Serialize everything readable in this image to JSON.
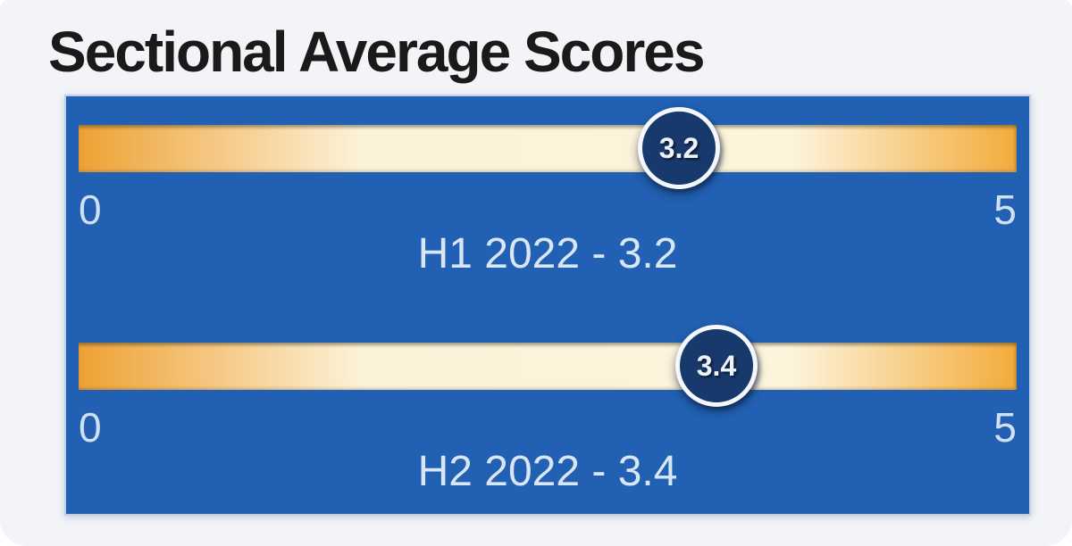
{
  "title": "Sectional Average Scores",
  "gauges": [
    {
      "id": "h1-2022",
      "period": "H1 2022",
      "value": 3.2,
      "min": 0,
      "max": 5,
      "tick_min": "0",
      "tick_max": "5",
      "marker_label": "3.2",
      "caption": "H1 2022 - 3.2"
    },
    {
      "id": "h2-2022",
      "period": "H2 2022",
      "value": 3.4,
      "min": 0,
      "max": 5,
      "tick_min": "0",
      "tick_max": "5",
      "marker_label": "3.4",
      "caption": "H2 2022 - 3.4"
    }
  ],
  "colors": {
    "card_background": "#f2f4f8",
    "panel_blue": "#2160b2",
    "panel_border": "#c3cfe6",
    "bar_orange": "#eea134",
    "bar_cream": "#fdf4dc",
    "marker_navy": "#17396b",
    "marker_ring": "#f4f7fb",
    "label_light_blue": "#cfe0f3",
    "caption_light": "#d8e6f6",
    "title_text": "#1a1a1a"
  },
  "chart_data": {
    "type": "bar",
    "subtype": "linear-gauge",
    "title": "Sectional Average Scores",
    "categories": [
      "H1 2022",
      "H2 2022"
    ],
    "values": [
      3.2,
      3.4
    ],
    "xlim": [
      0,
      5
    ],
    "tick_labels": [
      "0",
      "5"
    ],
    "data_labels": [
      "3.2",
      "3.4"
    ],
    "annotations": [
      "H1 2022 - 3.2",
      "H2 2022 - 3.4"
    ],
    "grid": false,
    "legend": false,
    "orientation": "horizontal"
  }
}
